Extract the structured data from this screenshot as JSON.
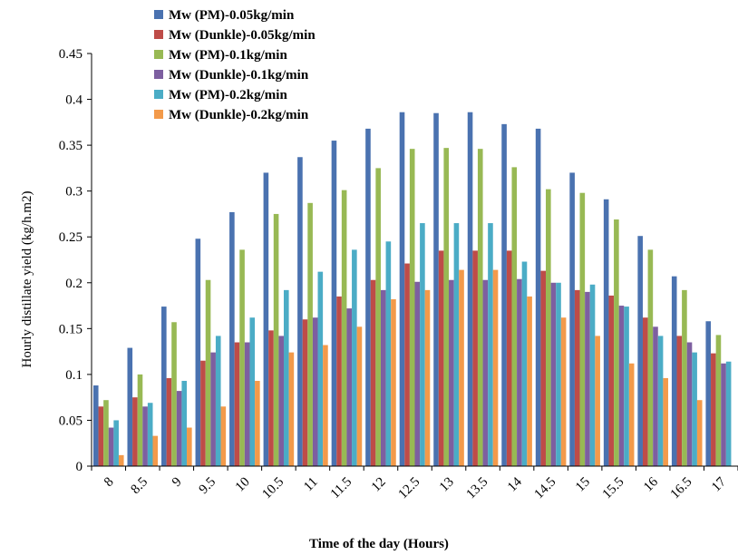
{
  "chart_data": {
    "type": "bar",
    "title": "",
    "xlabel": "Time of the day (Hours)",
    "ylabel": "Hourly distillate yield (kg/h.m2)",
    "ylim": [
      0,
      0.45
    ],
    "yticks": [
      "0",
      "0.05",
      "0.1",
      "0.15",
      "0.2",
      "0.25",
      "0.3",
      "0.35",
      "0.4",
      "0.45"
    ],
    "grid": false,
    "legend_position": "top-center",
    "categories": [
      "8",
      "8.5",
      "9",
      "9.5",
      "10",
      "10.5",
      "11",
      "11.5",
      "12",
      "12.5",
      "13",
      "13.5",
      "14",
      "14.5",
      "15",
      "15.5",
      "16",
      "16.5",
      "17"
    ],
    "series": [
      {
        "name": "Mw (PM)-0.05kg/min",
        "color": "#4a72b0",
        "values": [
          0.088,
          0.129,
          0.174,
          0.248,
          0.277,
          0.32,
          0.337,
          0.355,
          0.368,
          0.386,
          0.385,
          0.386,
          0.373,
          0.368,
          0.32,
          0.291,
          0.251,
          0.207,
          0.158
        ]
      },
      {
        "name": "Mw (Dunkle)-0.05kg/min",
        "color": "#be4c48",
        "values": [
          0.065,
          0.075,
          0.096,
          0.115,
          0.135,
          0.148,
          0.16,
          0.185,
          0.203,
          0.221,
          0.235,
          0.235,
          0.235,
          0.213,
          0.192,
          0.186,
          0.162,
          0.142,
          0.123
        ]
      },
      {
        "name": "Mw (PM)-0.1kg/min",
        "color": "#98b954",
        "values": [
          0.072,
          0.1,
          0.157,
          0.203,
          0.236,
          0.275,
          0.287,
          0.301,
          0.325,
          0.346,
          0.347,
          0.346,
          0.326,
          0.302,
          0.298,
          0.269,
          0.236,
          0.192,
          0.143
        ]
      },
      {
        "name": "Mw (Dunkle)-0.1kg/min",
        "color": "#7d5fa0",
        "values": [
          0.042,
          0.065,
          0.082,
          0.124,
          0.135,
          0.142,
          0.162,
          0.172,
          0.192,
          0.201,
          0.203,
          0.203,
          0.204,
          0.2,
          0.19,
          0.175,
          0.152,
          0.135,
          0.112
        ]
      },
      {
        "name": "Mw (PM)-0.2kg/min",
        "color": "#4bacc6",
        "values": [
          0.05,
          0.069,
          0.093,
          0.142,
          0.162,
          0.192,
          0.212,
          0.236,
          0.245,
          0.265,
          0.265,
          0.265,
          0.223,
          0.2,
          0.198,
          0.174,
          0.142,
          0.124,
          0.114
        ]
      },
      {
        "name": "Mw (Dunkle)-0.2kg/min",
        "color": "#f39a4a",
        "values": [
          0.012,
          0.033,
          0.042,
          0.065,
          0.093,
          0.124,
          0.132,
          0.152,
          0.182,
          0.192,
          0.214,
          0.214,
          0.185,
          0.162,
          0.142,
          0.112,
          0.096,
          0.072,
          null
        ]
      }
    ]
  }
}
